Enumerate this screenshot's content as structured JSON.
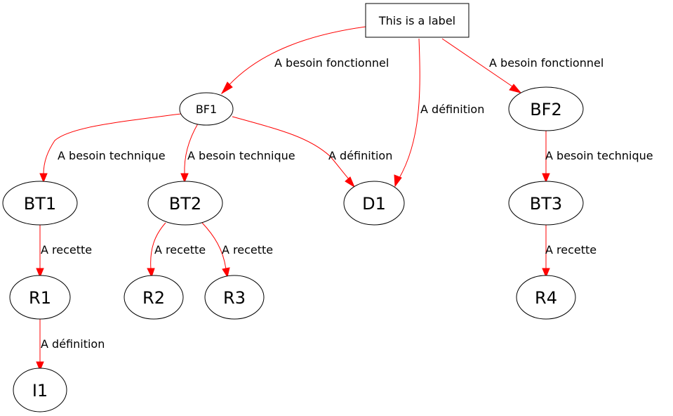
{
  "colors": {
    "edge": "#ff0000",
    "node_stroke": "#000000",
    "background": "#ffffff"
  },
  "nodes": {
    "label": "This is a label",
    "bf1": "BF1",
    "bf2": "BF2",
    "bt1": "BT1",
    "bt2": "BT2",
    "bt3": "BT3",
    "d1": "D1",
    "r1": "R1",
    "r2": "R2",
    "r3": "R3",
    "r4": "R4",
    "i1": "I1"
  },
  "edges": {
    "label_bf1": "A besoin fonctionnel",
    "label_d1": "A définition",
    "label_bf2": "A besoin fonctionnel",
    "bf1_bt1": "A besoin technique",
    "bf1_bt2": "A besoin technique",
    "bf1_d1": "A définition",
    "bf2_bt3": "A besoin technique",
    "bt1_r1": "A recette",
    "bt2_r2": "A recette",
    "bt2_r3": "A recette",
    "bt3_r4": "A recette",
    "r1_i1": "A définition"
  }
}
